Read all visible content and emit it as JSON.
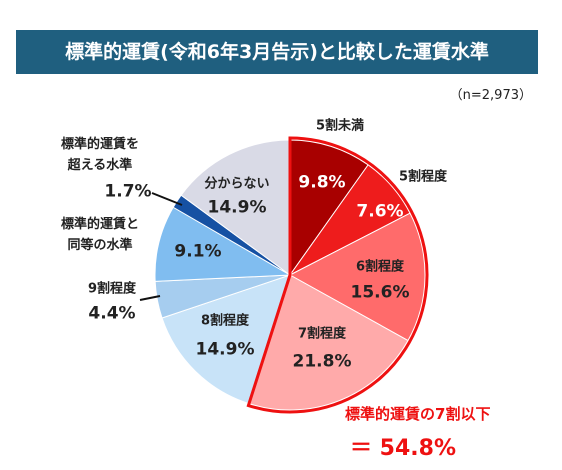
{
  "chart_data": {
    "type": "pie",
    "title": "標準的運賃(令和6年3月告示)と比較した運賃水準",
    "note": "（n=2,973）",
    "categories": [
      "5割未満",
      "5割程度",
      "6割程度",
      "7割程度",
      "8割程度",
      "9割程度",
      "標準的運賃と\n同等の水準",
      "標準的運賃を\n超える水準",
      "分からない"
    ],
    "values": [
      9.8,
      7.6,
      15.6,
      21.8,
      14.9,
      4.4,
      9.1,
      1.7,
      14.9
    ],
    "value_labels": [
      "9.8%",
      "7.6%",
      "15.6%",
      "21.8%",
      "14.9%",
      "4.4%",
      "9.1%",
      "1.7%",
      "14.9%"
    ],
    "colors": [
      "#a80000",
      "#ee1c1c",
      "#ff6b6b",
      "#ffaaaa",
      "#c8e3f8",
      "#a6cdef",
      "#80bdf0",
      "#1651a3",
      "#d9dae6"
    ],
    "annotation": [
      "標準的運賃の7割以下",
      "＝ 54.8%"
    ]
  }
}
